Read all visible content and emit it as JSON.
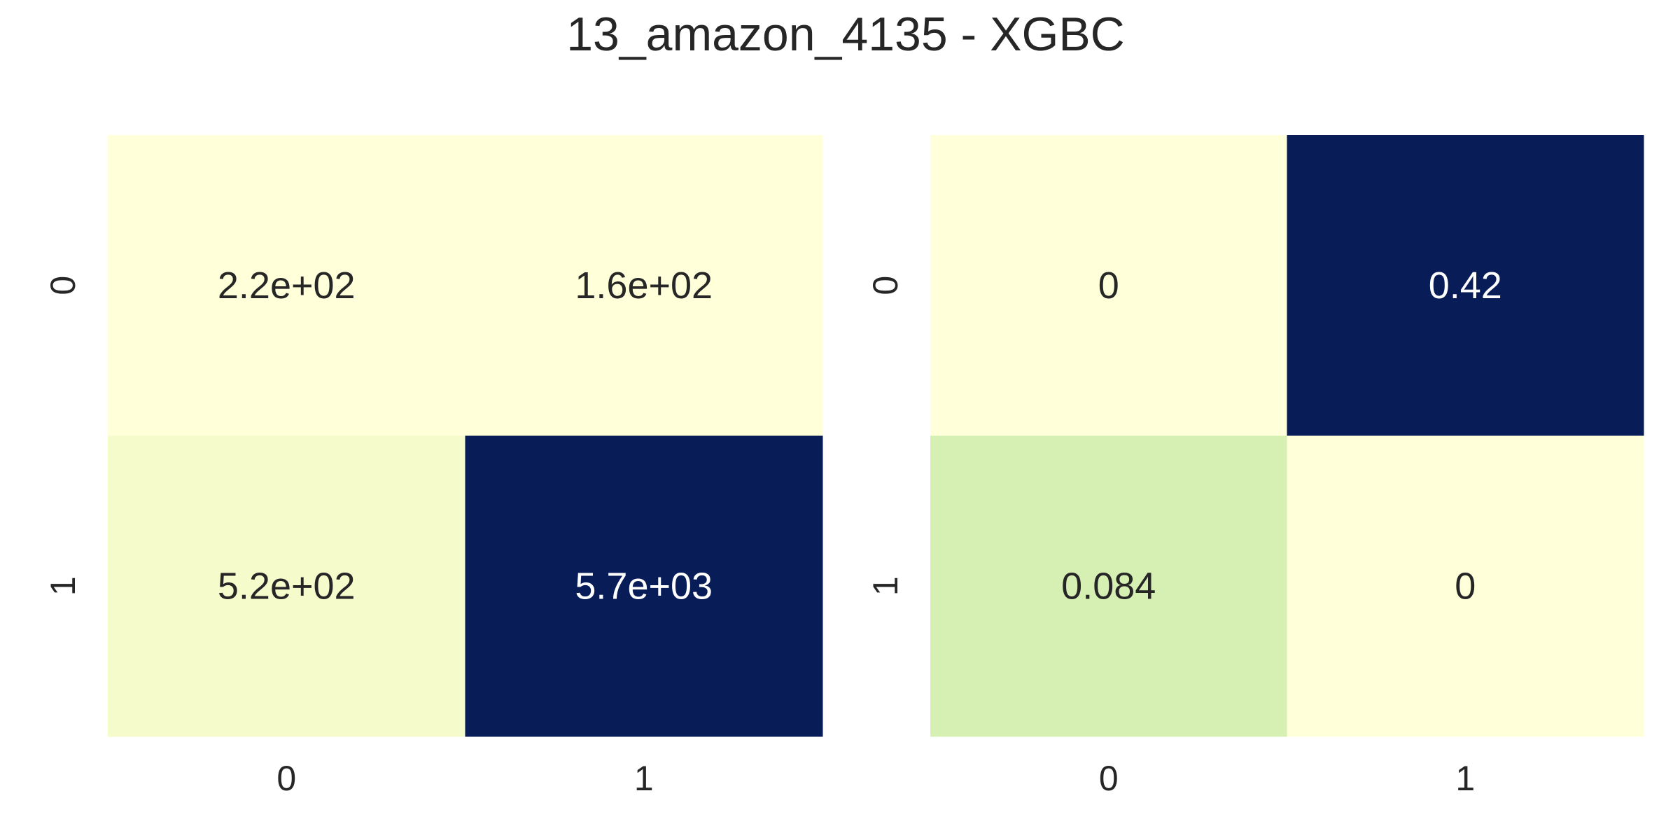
{
  "figure": {
    "title": "13_amazon_4135 - XGBC"
  },
  "chart_data": [
    {
      "type": "heatmap",
      "colormap": "YlGnBu",
      "rows": [
        "0",
        "1"
      ],
      "columns": [
        "0",
        "1"
      ],
      "values": [
        [
          220,
          160
        ],
        [
          520,
          5700
        ]
      ],
      "cell_labels": [
        [
          "2.2e+02",
          "1.6e+02"
        ],
        [
          "5.2e+02",
          "5.7e+03"
        ]
      ],
      "colors": [
        [
          "#ffffd9",
          "#ffffd9"
        ],
        [
          "#f6fbcb",
          "#081d58"
        ]
      ],
      "label_colors": [
        [
          "#262626",
          "#262626"
        ],
        [
          "#262626",
          "#ffffff"
        ]
      ],
      "colorbar": false
    },
    {
      "type": "heatmap",
      "colormap": "YlGnBu",
      "rows": [
        "0",
        "1"
      ],
      "columns": [
        "0",
        "1"
      ],
      "values": [
        [
          0,
          0.42
        ],
        [
          0.084,
          0
        ]
      ],
      "cell_labels": [
        [
          "0",
          "0.42"
        ],
        [
          "0.084",
          "0"
        ]
      ],
      "colors": [
        [
          "#ffffd9",
          "#081d58"
        ],
        [
          "#d6efb3",
          "#ffffd9"
        ]
      ],
      "label_colors": [
        [
          "#262626",
          "#ffffff"
        ],
        [
          "#262626",
          "#262626"
        ]
      ],
      "colorbar": false
    }
  ]
}
